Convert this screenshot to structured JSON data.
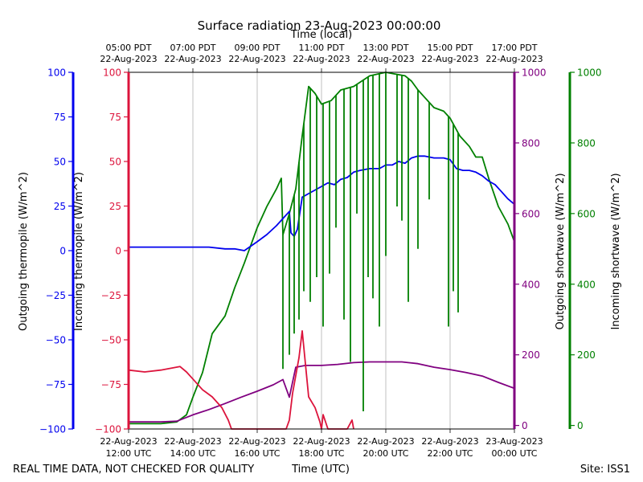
{
  "chart_data": {
    "type": "line",
    "title": "Surface radiation 23-Aug-2023 00:00:00",
    "top_axis_label": "Time (local)",
    "xlabel": "Time (UTC)",
    "footer_left": "REAL TIME DATA, NOT CHECKED FOR QUALITY",
    "footer_right": "Site: ISS1",
    "x_range_hours_utc": [
      12,
      24
    ],
    "bottom_ticks": [
      {
        "h": 12,
        "l1": "22-Aug-2023",
        "l2": "12:00 UTC"
      },
      {
        "h": 14,
        "l1": "22-Aug-2023",
        "l2": "14:00 UTC"
      },
      {
        "h": 16,
        "l1": "22-Aug-2023",
        "l2": "16:00 UTC"
      },
      {
        "h": 18,
        "l1": "22-Aug-2023",
        "l2": "18:00 UTC"
      },
      {
        "h": 20,
        "l1": "22-Aug-2023",
        "l2": "20:00 UTC"
      },
      {
        "h": 22,
        "l1": "22-Aug-2023",
        "l2": "22:00 UTC"
      },
      {
        "h": 24,
        "l1": "23-Aug-2023",
        "l2": "00:00 UTC"
      }
    ],
    "top_ticks": [
      {
        "h": 12,
        "l1": "05:00 PDT",
        "l2": "22-Aug-2023"
      },
      {
        "h": 14,
        "l1": "07:00 PDT",
        "l2": "22-Aug-2023"
      },
      {
        "h": 16,
        "l1": "09:00 PDT",
        "l2": "22-Aug-2023"
      },
      {
        "h": 18,
        "l1": "11:00 PDT",
        "l2": "22-Aug-2023"
      },
      {
        "h": 20,
        "l1": "13:00 PDT",
        "l2": "22-Aug-2023"
      },
      {
        "h": 22,
        "l1": "15:00 PDT",
        "l2": "22-Aug-2023"
      },
      {
        "h": 24,
        "l1": "17:00 PDT",
        "l2": "22-Aug-2023"
      }
    ],
    "axes": {
      "outgoing_thermopile": {
        "label": "Outgoing thermopile (W/m^2)",
        "color": "#0000ee",
        "ylim": [
          -100,
          100
        ],
        "ticks": [
          "100",
          "75",
          "50",
          "25",
          "0",
          "−25",
          "−50",
          "−75",
          "−100"
        ]
      },
      "incoming_thermopile": {
        "label": "Incoming thermopile (W/m^2)",
        "color": "#dc143c",
        "ylim": [
          -100,
          100
        ],
        "ticks": [
          "100",
          "75",
          "50",
          "25",
          "0",
          "−25",
          "−50",
          "−75",
          "−100"
        ]
      },
      "outgoing_shortwave": {
        "label": "Outgoing shortwave (W/m^2)",
        "color": "#800080",
        "ylim": [
          -10,
          1000
        ],
        "ticks": [
          "0",
          "200",
          "400",
          "600",
          "800",
          "1000"
        ]
      },
      "incoming_shortwave": {
        "label": "Incoming shortwave (W/m^2)",
        "color": "#008000",
        "ylim": [
          -10,
          1000
        ],
        "ticks": [
          "0",
          "200",
          "400",
          "600",
          "800",
          "1000"
        ]
      }
    },
    "series": [
      {
        "name": "Outgoing thermopile",
        "axis": "outgoing_thermopile",
        "color": "#0000ee",
        "x": [
          12,
          12.5,
          13,
          13.5,
          14,
          14.5,
          15,
          15.3,
          15.6,
          16,
          16.3,
          16.6,
          16.9,
          17.0,
          17.05,
          17.15,
          17.25,
          17.4,
          17.6,
          18.0,
          18.2,
          18.4,
          18.6,
          18.8,
          19.0,
          19.2,
          19.5,
          19.8,
          20.0,
          20.2,
          20.4,
          20.6,
          20.8,
          21.0,
          21.2,
          21.5,
          21.8,
          22.0,
          22.2,
          22.4,
          22.6,
          22.8,
          23.0,
          23.2,
          23.4,
          23.6,
          23.8,
          24.0
        ],
        "y": [
          2,
          2,
          2,
          2,
          2,
          2,
          1,
          1,
          0,
          5,
          9,
          14,
          20,
          22,
          10,
          8,
          12,
          30,
          32,
          36,
          38,
          37,
          40,
          41,
          44,
          45,
          46,
          46,
          48,
          48,
          50,
          49,
          52,
          53,
          53,
          52,
          52,
          51,
          46,
          45,
          45,
          44,
          42,
          39,
          37,
          33,
          29,
          26
        ]
      },
      {
        "name": "Incoming thermopile",
        "axis": "incoming_thermopile",
        "color": "#dc143c",
        "x": [
          12,
          12.5,
          13,
          13.3,
          13.6,
          13.8,
          14,
          14.3,
          14.6,
          14.9,
          15.1,
          15.2,
          15.5,
          16,
          16.5,
          16.9,
          17.0,
          17.1,
          17.3,
          17.4,
          17.6,
          17.8,
          17.95,
          18.0,
          18.05,
          18.2,
          18.5,
          18.8,
          18.95,
          19.0
        ],
        "y": [
          -67,
          -68,
          -67,
          -66,
          -65,
          -68,
          -72,
          -78,
          -82,
          -88,
          -95,
          -100,
          -100,
          -100,
          -100,
          -100,
          -95,
          -80,
          -60,
          -45,
          -82,
          -88,
          -96,
          -100,
          -92,
          -100,
          -100,
          -100,
          -95,
          -100
        ]
      },
      {
        "name": "Outgoing shortwave",
        "axis": "outgoing_shortwave",
        "color": "#800080",
        "x": [
          12,
          13,
          13.5,
          14,
          14.5,
          15,
          15.5,
          16,
          16.5,
          16.8,
          17.0,
          17.2,
          17.5,
          18.0,
          18.5,
          19.0,
          19.5,
          20.0,
          20.5,
          21.0,
          21.5,
          22.0,
          22.5,
          23.0,
          23.5,
          24.0
        ],
        "y": [
          10,
          10,
          12,
          30,
          45,
          62,
          80,
          97,
          115,
          130,
          80,
          165,
          170,
          170,
          173,
          178,
          180,
          180,
          180,
          175,
          165,
          158,
          150,
          140,
          122,
          105
        ]
      },
      {
        "name": "Incoming shortwave",
        "axis": "incoming_shortwave",
        "color": "#008000",
        "x": [
          12,
          12.5,
          13.0,
          13.5,
          13.8,
          14.0,
          14.3,
          14.6,
          15.0,
          15.3,
          15.6,
          16.0,
          16.3,
          16.6,
          16.75,
          16.8,
          17.0,
          17.2,
          17.4,
          17.6,
          17.8,
          18.0,
          18.3,
          18.6,
          19.0,
          19.5,
          20.0,
          20.3,
          20.6,
          20.8,
          21.0,
          21.2,
          21.5,
          21.8,
          22.0,
          22.3,
          22.6,
          22.8,
          23.0,
          23.2,
          23.5,
          23.8,
          24.0
        ],
        "y": [
          5,
          5,
          5,
          10,
          30,
          80,
          150,
          260,
          310,
          390,
          460,
          560,
          620,
          670,
          700,
          540,
          600,
          670,
          820,
          960,
          940,
          910,
          920,
          950,
          960,
          990,
          1000,
          995,
          990,
          975,
          950,
          930,
          900,
          890,
          870,
          820,
          790,
          760,
          760,
          700,
          620,
          570,
          520
        ]
      }
    ],
    "shortwave_dropouts": {
      "x": [
        16.8,
        17.0,
        17.15,
        17.3,
        17.45,
        17.65,
        17.85,
        18.05,
        18.25,
        18.45,
        18.7,
        18.9,
        19.1,
        19.3,
        19.45,
        19.6,
        19.8,
        20.0,
        20.35,
        20.5,
        20.7,
        21.0,
        21.35,
        21.95,
        22.1,
        22.25
      ],
      "y": [
        160,
        200,
        260,
        300,
        380,
        350,
        420,
        280,
        430,
        560,
        300,
        180,
        600,
        40,
        420,
        360,
        280,
        480,
        620,
        580,
        350,
        500,
        640,
        280,
        380,
        320
      ]
    }
  }
}
